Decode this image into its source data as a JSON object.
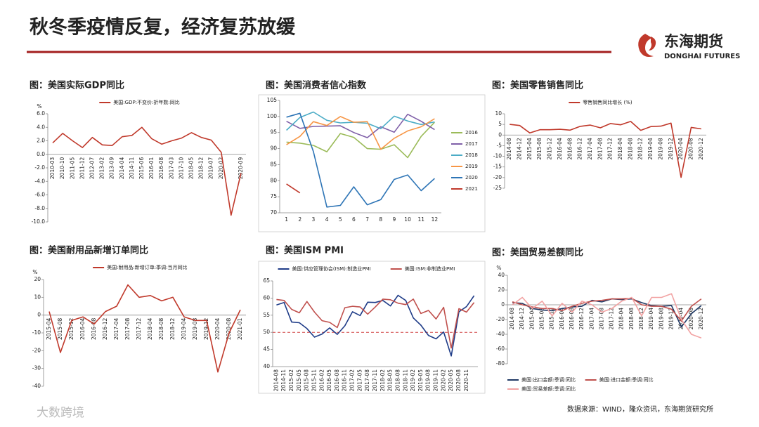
{
  "header": {
    "title": "秋冬季疫情反复，经济复苏放缓",
    "logo_cn": "东海期货",
    "logo_en": "DONGHAI FUTURES"
  },
  "footer": {
    "source": "数据来源：WIND，隆众资讯，东海期货研究所",
    "watermark": "大数跨境"
  },
  "chart_data": [
    {
      "type": "line",
      "title": "图：美国实际GDP同比",
      "unit": "%",
      "legend": "top",
      "categories": [
        "2010-03",
        "2010-10",
        "2011-05",
        "2011-12",
        "2012-07",
        "2013-02",
        "2013-09",
        "2014-04",
        "2014-11",
        "2015-06",
        "2016-01",
        "2016-08",
        "2017-03",
        "2017-10",
        "2018-05",
        "2018-12",
        "2019-07",
        "2020-02",
        null,
        "2020-09"
      ],
      "series": [
        {
          "name": "美国:GDP:不变价:折年数:同比",
          "color": "#c0392b",
          "values": [
            1.7,
            3.1,
            2.0,
            1.0,
            2.5,
            1.4,
            1.3,
            2.6,
            2.8,
            4.0,
            2.3,
            1.5,
            2.0,
            2.4,
            3.2,
            2.5,
            2.1,
            0.3,
            -9.0,
            -2.8
          ]
        }
      ],
      "ylim": [
        -10,
        6
      ],
      "yticks": [
        {
          "value": 6,
          "label": "6.0"
        },
        {
          "value": 4,
          "label": "4.0"
        },
        {
          "value": 2,
          "label": "2.0"
        },
        {
          "value": 0,
          "label": "0.0"
        },
        {
          "value": -2,
          "label": "-2.0"
        },
        {
          "value": -4,
          "label": "-4.0"
        },
        {
          "value": -6,
          "label": "-6.0"
        },
        {
          "value": -8,
          "label": "-8.0"
        },
        {
          "value": -10,
          "label": "-10.0"
        }
      ]
    },
    {
      "type": "line",
      "title": "图：美国消费者信心指数",
      "legend": "right",
      "categories": [
        1,
        2,
        3,
        4,
        5,
        6,
        7,
        8,
        9,
        10,
        11,
        12
      ],
      "series": [
        {
          "name": "2016",
          "color": "#9bbb59",
          "values": [
            92,
            91.7,
            91,
            89,
            94.7,
            93.5,
            90,
            89.8,
            91.2,
            87.2,
            93.8,
            98.2
          ]
        },
        {
          "name": "2017",
          "color": "#7f5fa8",
          "values": [
            98.5,
            96.3,
            96.9,
            97,
            97.1,
            95,
            93.4,
            96.8,
            95.1,
            100.7,
            98.5,
            95.9
          ]
        },
        {
          "name": "2018",
          "color": "#4bacc6",
          "values": [
            95.7,
            99.7,
            101.4,
            98.8,
            98,
            98.2,
            97.9,
            96.2,
            100.1,
            98.6,
            97.5,
            98.3
          ]
        },
        {
          "name": "2019",
          "color": "#f79646",
          "values": [
            91.2,
            93.8,
            98.4,
            97.2,
            100,
            98.2,
            98.4,
            89.8,
            93.2,
            95.5,
            96.8,
            99.3
          ]
        },
        {
          "name": "2020",
          "color": "#2e75b6",
          "values": [
            99.8,
            101,
            89.1,
            71.8,
            72.3,
            78.1,
            72.5,
            74.1,
            80.4,
            81.8,
            76.9,
            80.7
          ]
        },
        {
          "name": "2021",
          "color": "#c0392b",
          "values": [
            79,
            76.2,
            null,
            null,
            null,
            null,
            null,
            null,
            null,
            null,
            null,
            null
          ]
        }
      ],
      "ylim": [
        70,
        105
      ],
      "yticks": [
        105,
        100,
        95,
        90,
        85,
        80,
        75,
        70
      ]
    },
    {
      "type": "line",
      "title": "图：美国零售销售同比",
      "legend": "top",
      "categories": [
        "2014-08",
        "2014-12",
        "2015-04",
        "2015-08",
        "2015-12",
        "2016-04",
        "2016-08",
        "2016-12",
        "2017-04",
        "2017-08",
        "2017-12",
        "2018-04",
        "2018-08",
        "2018-12",
        "2019-04",
        "2019-08",
        "2019-12",
        "2020-04",
        "2020-08",
        "2020-12"
      ],
      "series": [
        {
          "name": "零售销售同比增长 (%)",
          "color": "#c0392b",
          "values": [
            5,
            4.5,
            1,
            2.5,
            2.5,
            2.7,
            2.3,
            4.1,
            4.7,
            3.4,
            5.4,
            4.8,
            6.4,
            2.2,
            4,
            4.2,
            5.6,
            -19.9,
            3.6,
            2.9
          ]
        }
      ],
      "ylim": [
        -25,
        10
      ],
      "yticks": [
        10,
        5,
        0,
        -5,
        -10,
        -15,
        -20,
        -25
      ]
    },
    {
      "type": "line",
      "title": "图：美国耐用品新增订单同比",
      "unit": "%",
      "legend": "top",
      "categories": [
        "2015-04",
        "2015-08",
        "2015-12",
        "2016-04",
        "2016-08",
        "2016-12",
        "2017-04",
        "2017-08",
        "2017-12",
        "2018-04",
        "2018-08",
        "2018-12",
        "2019-04",
        "2019-08",
        "2019-12",
        "2020-04",
        "2020-08",
        "2021-01"
      ],
      "series": [
        {
          "name": "美国:耐用品:新增订单:季调:当月同比",
          "color": "#c0392b",
          "values": [
            2,
            -21,
            -3,
            -1,
            -5,
            2,
            5,
            17,
            10,
            11,
            8,
            10,
            -1,
            -3,
            -3,
            -32,
            -10,
            3
          ]
        }
      ],
      "ylim": [
        -40,
        20
      ],
      "yticks": [
        20,
        10,
        0,
        -10,
        -20,
        -30,
        -40
      ]
    },
    {
      "type": "line",
      "title": "图：美国ISM PMI",
      "legend": "top",
      "hline": 50,
      "categories": [
        "2014-08",
        "2014-11",
        "2015-02",
        "2015-05",
        "2015-08",
        "2015-11",
        "2016-02",
        "2016-05",
        "2016-08",
        "2016-11",
        "2017-02",
        "2017-05",
        "2017-08",
        "2017-11",
        "2018-02",
        "2018-05",
        "2018-08",
        "2018-11",
        "2019-02",
        "2019-05",
        "2019-08",
        "2019-11",
        "2020-02",
        "2020-05",
        "2020-08",
        "2020-11",
        null
      ],
      "series": [
        {
          "name": "美国:供应管理协会(ISM):制造业PMI",
          "color": "#1f3c88",
          "values": [
            58,
            58.7,
            53,
            52.8,
            51.1,
            48.6,
            49.5,
            51.3,
            49.4,
            51.9,
            56,
            54.9,
            58.8,
            58.7,
            59.3,
            57.7,
            60.8,
            59.3,
            54.2,
            52.1,
            49.1,
            48.1,
            50.1,
            43.1,
            56,
            57.5,
            60.7
          ]
        },
        {
          "name": "美国:ISM:非制造业PMI",
          "color": "#c0504d",
          "values": [
            59.6,
            59.3,
            56.7,
            55.7,
            59,
            55.9,
            53.4,
            52.9,
            51.4,
            57.2,
            57.6,
            57.4,
            55.3,
            57.4,
            59.7,
            59.5,
            58.5,
            58.1,
            59.7,
            55.5,
            56.4,
            53.9,
            57.3,
            45.4,
            56.9,
            55.9,
            58.7
          ]
        }
      ],
      "ylim": [
        40,
        65
      ],
      "yticks": [
        65,
        60,
        55,
        50,
        45,
        40
      ]
    },
    {
      "type": "line",
      "title": "图：美国贸易差额同比",
      "unit": "%",
      "legend": "bottom",
      "categories": [
        "2014-08",
        "2014-12",
        "2015-04",
        "2015-08",
        "2015-12",
        "2016-04",
        "2016-08",
        "2016-12",
        "2017-04",
        "2017-08",
        "2017-12",
        "2018-04",
        "2018-08",
        "2018-12",
        "2019-04",
        "2019-08",
        "2019-12",
        "2020-04",
        "2020-08",
        "2020-12"
      ],
      "series": [
        {
          "name": "美国:出口金额:季调:同比",
          "color": "#1f3864",
          "values": [
            3,
            2,
            -5,
            -7,
            -8,
            -5,
            -3,
            -2,
            6,
            4,
            8,
            7,
            8,
            3,
            -1,
            -2,
            -1,
            -30,
            -12,
            -1
          ]
        },
        {
          "name": "美国:进口金额:季调:同比",
          "color": "#c0504d",
          "values": [
            4,
            0,
            -3,
            -5,
            -5,
            -8,
            -2,
            2,
            5,
            6,
            8,
            8,
            9,
            0,
            -2,
            -2,
            -6,
            -22,
            -2,
            8
          ]
        },
        {
          "name": "美国:贸易差额:季调:同比",
          "color": "#f2a3a3",
          "values": [
            0,
            10,
            -5,
            5,
            -15,
            2,
            -10,
            5,
            0,
            -10,
            -5,
            5,
            10,
            -15,
            10,
            10,
            15,
            -20,
            -40,
            -45
          ]
        }
      ],
      "ylim": [
        -80,
        40
      ],
      "yticks": [
        40,
        20,
        0,
        -20,
        -40,
        -60,
        -80
      ]
    }
  ]
}
